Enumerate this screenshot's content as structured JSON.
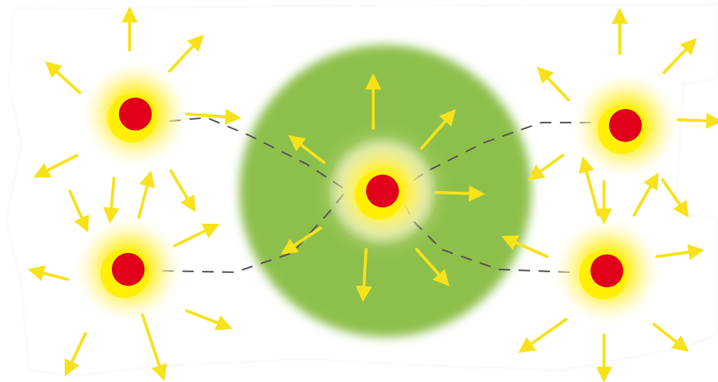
{
  "colors": {
    "background": "#ffffff",
    "paper": "#f7f7f7",
    "core": "#e0001a",
    "glow": "#ffe600",
    "arrow": "#f7e21b",
    "zone": "#8dc04c",
    "link": "#555555"
  },
  "icons": {
    "core": "red-dot-icon",
    "glow": "yellow-glow-icon",
    "arrow": "arrow-icon",
    "zone": "green-disc-icon"
  },
  "diagram": {
    "sources": [
      {
        "id": "top-left"
      },
      {
        "id": "bottom-left"
      },
      {
        "id": "center"
      },
      {
        "id": "top-right"
      },
      {
        "id": "bottom-right"
      }
    ],
    "links": [
      {
        "from": "top-left",
        "to": "center"
      },
      {
        "from": "bottom-left",
        "to": "center"
      },
      {
        "from": "top-right",
        "to": "center"
      },
      {
        "from": "bottom-right",
        "to": "center"
      }
    ]
  }
}
